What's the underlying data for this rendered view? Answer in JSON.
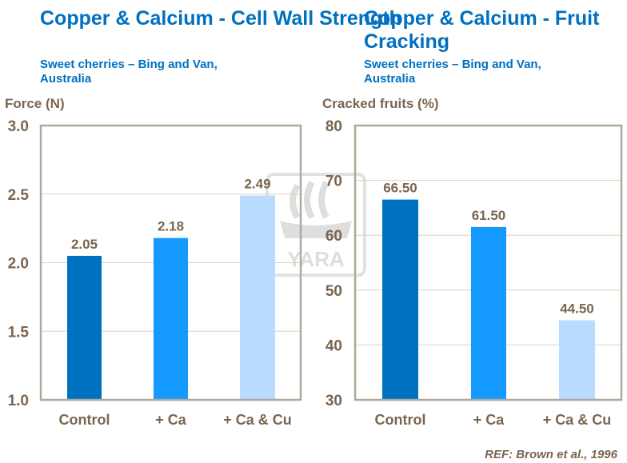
{
  "charts": [
    {
      "title": "Copper & Calcium - Cell Wall Strength",
      "subtitle": "Sweet cherries – Bing and Van, Australia",
      "ylabel": "Force (N)"
    },
    {
      "title": "Copper & Calcium - Fruit Cracking",
      "subtitle": "Sweet cherries – Bing and Van, Australia",
      "ylabel": "Cracked fruits (%)"
    }
  ],
  "reference": "REF: Brown et al., 1996",
  "watermark": "YARA",
  "colors": {
    "title": "#0070c0",
    "text": "#7a6650",
    "bars": [
      "#0070c0",
      "#1499ff",
      "#b8dcff"
    ],
    "axis": "#b0a89a",
    "grid": "#d8d2c8"
  },
  "chart_data": [
    {
      "type": "bar",
      "title": "Copper & Calcium - Cell Wall Strength",
      "subtitle": "Sweet cherries – Bing and Van, Australia",
      "xlabel": "",
      "ylabel": "Force (N)",
      "categories": [
        "Control",
        "+ Ca",
        "+ Ca & Cu"
      ],
      "values": [
        2.05,
        2.18,
        2.49
      ],
      "data_labels": [
        "2.05",
        "2.18",
        "2.49"
      ],
      "ylim": [
        1.0,
        3.0
      ],
      "yticks": [
        "1.0",
        "1.5",
        "2.0",
        "2.5",
        "3.0"
      ],
      "ytick_values": [
        1.0,
        1.5,
        2.0,
        2.5,
        3.0
      ],
      "grid": true
    },
    {
      "type": "bar",
      "title": "Copper & Calcium - Fruit Cracking",
      "subtitle": "Sweet cherries – Bing and Van, Australia",
      "xlabel": "",
      "ylabel": "Cracked fruits (%)",
      "categories": [
        "Control",
        "+ Ca",
        "+ Ca & Cu"
      ],
      "values": [
        66.5,
        61.5,
        44.5
      ],
      "data_labels": [
        "66.50",
        "61.50",
        "44.50"
      ],
      "ylim": [
        30,
        80
      ],
      "yticks": [
        "30",
        "40",
        "50",
        "60",
        "70",
        "80"
      ],
      "ytick_values": [
        30,
        40,
        50,
        60,
        70,
        80
      ],
      "grid": true
    }
  ]
}
